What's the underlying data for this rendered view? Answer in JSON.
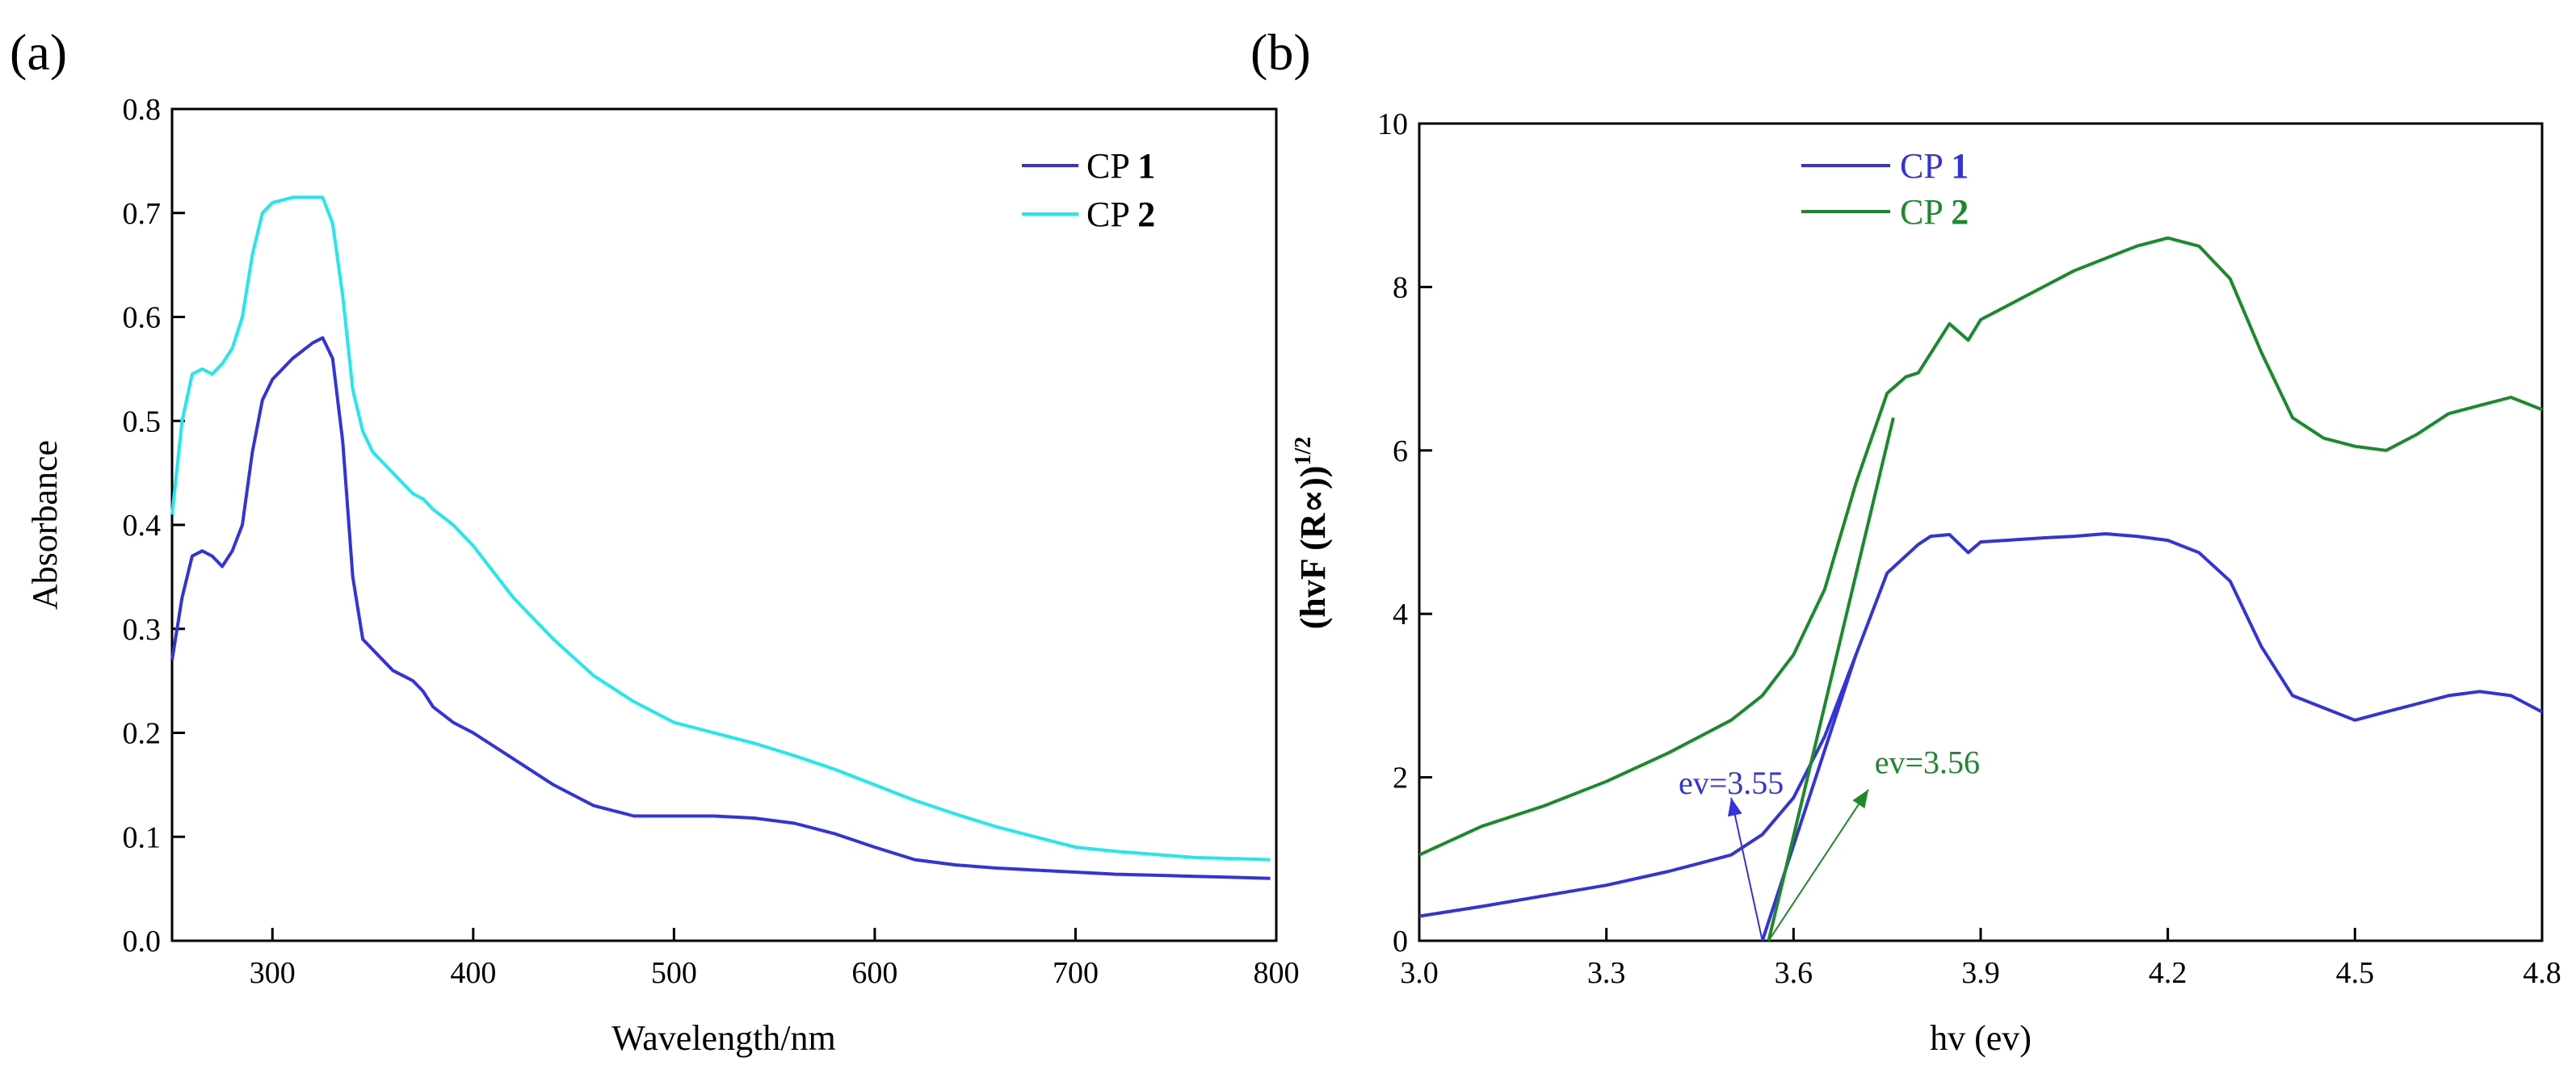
{
  "chart_data": [
    {
      "type": "line",
      "panel_label": "(a)",
      "xlabel": "Wavelength/nm",
      "ylabel": "Absorbance",
      "xlim": [
        250,
        800
      ],
      "ylim": [
        0.0,
        0.8
      ],
      "x_ticks": [
        300,
        400,
        500,
        600,
        700,
        800
      ],
      "x_tick_labels": [
        "300",
        "400",
        "500",
        "600",
        "700",
        "800"
      ],
      "y_ticks": [
        0.0,
        0.1,
        0.2,
        0.3,
        0.4,
        0.5,
        0.6,
        0.7,
        0.8
      ],
      "y_tick_labels": [
        "0.0",
        "0.1",
        "0.2",
        "0.3",
        "0.4",
        "0.5",
        "0.6",
        "0.7",
        "0.8"
      ],
      "grid": false,
      "legend_position": "top-right",
      "series": [
        {
          "name": "CP 1",
          "name_prefix": "CP ",
          "name_bold": "1",
          "color": "#3333dd",
          "x": [
            250,
            255,
            260,
            265,
            270,
            275,
            280,
            285,
            290,
            295,
            300,
            310,
            320,
            325,
            330,
            335,
            340,
            345,
            350,
            360,
            370,
            375,
            380,
            390,
            400,
            420,
            440,
            460,
            480,
            500,
            520,
            540,
            560,
            580,
            600,
            620,
            640,
            660,
            680,
            700,
            720,
            740,
            760,
            780,
            797
          ],
          "y": [
            0.27,
            0.33,
            0.37,
            0.375,
            0.37,
            0.36,
            0.375,
            0.4,
            0.47,
            0.52,
            0.54,
            0.56,
            0.575,
            0.58,
            0.56,
            0.48,
            0.35,
            0.29,
            0.28,
            0.26,
            0.25,
            0.24,
            0.225,
            0.21,
            0.2,
            0.175,
            0.15,
            0.13,
            0.12,
            0.12,
            0.12,
            0.118,
            0.113,
            0.103,
            0.09,
            0.078,
            0.073,
            0.07,
            0.068,
            0.066,
            0.064,
            0.063,
            0.062,
            0.061,
            0.06
          ]
        },
        {
          "name": "CP 2",
          "name_prefix": "CP ",
          "name_bold": "2",
          "color": "#22e8ee",
          "x": [
            250,
            255,
            260,
            265,
            270,
            275,
            280,
            285,
            290,
            295,
            300,
            310,
            320,
            325,
            330,
            335,
            340,
            345,
            350,
            360,
            370,
            375,
            380,
            390,
            400,
            420,
            440,
            460,
            480,
            500,
            520,
            540,
            560,
            580,
            600,
            620,
            640,
            660,
            680,
            700,
            720,
            740,
            760,
            780,
            797
          ],
          "y": [
            0.41,
            0.5,
            0.545,
            0.55,
            0.545,
            0.555,
            0.57,
            0.6,
            0.66,
            0.7,
            0.71,
            0.715,
            0.715,
            0.715,
            0.69,
            0.62,
            0.53,
            0.49,
            0.47,
            0.45,
            0.43,
            0.425,
            0.415,
            0.4,
            0.38,
            0.33,
            0.29,
            0.255,
            0.23,
            0.21,
            0.2,
            0.19,
            0.178,
            0.165,
            0.15,
            0.135,
            0.122,
            0.11,
            0.1,
            0.09,
            0.086,
            0.083,
            0.08,
            0.079,
            0.078
          ]
        }
      ]
    },
    {
      "type": "line",
      "panel_label": "(b)",
      "xlabel": "hv (ev)",
      "ylabel_main": "(hvF (R∝))",
      "ylabel_sup": "1/2",
      "xlim": [
        3.0,
        4.8
      ],
      "ylim": [
        0,
        10
      ],
      "x_ticks": [
        3.0,
        3.3,
        3.6,
        3.9,
        4.2,
        4.5,
        4.8
      ],
      "x_tick_labels": [
        "3.0",
        "3.3",
        "3.6",
        "3.9",
        "4.2",
        "4.5",
        "4.8"
      ],
      "y_ticks": [
        0,
        2,
        4,
        6,
        8,
        10
      ],
      "y_tick_labels": [
        "0",
        "2",
        "4",
        "6",
        "8",
        "10"
      ],
      "grid": false,
      "legend_position": "top-left",
      "series": [
        {
          "name": "CP 1",
          "name_prefix": "CP ",
          "name_bold": "1",
          "color": "#3333dd",
          "x": [
            3.0,
            3.1,
            3.2,
            3.3,
            3.4,
            3.45,
            3.5,
            3.55,
            3.6,
            3.65,
            3.7,
            3.75,
            3.8,
            3.82,
            3.85,
            3.88,
            3.9,
            4.0,
            4.05,
            4.1,
            4.15,
            4.2,
            4.25,
            4.3,
            4.35,
            4.4,
            4.45,
            4.5,
            4.55,
            4.6,
            4.65,
            4.7,
            4.75,
            4.8
          ],
          "y": [
            0.3,
            0.42,
            0.55,
            0.68,
            0.85,
            0.95,
            1.05,
            1.3,
            1.75,
            2.5,
            3.5,
            4.5,
            4.85,
            4.95,
            4.97,
            4.75,
            4.88,
            4.93,
            4.95,
            4.98,
            4.95,
            4.9,
            4.75,
            4.4,
            3.6,
            3.0,
            2.85,
            2.7,
            2.8,
            2.9,
            3.0,
            3.05,
            3.0,
            2.8
          ]
        },
        {
          "name": "CP 2",
          "name_prefix": "CP ",
          "name_bold": "2",
          "color": "#1a8a2a",
          "x": [
            3.0,
            3.1,
            3.2,
            3.3,
            3.4,
            3.45,
            3.5,
            3.55,
            3.6,
            3.65,
            3.7,
            3.75,
            3.78,
            3.8,
            3.85,
            3.88,
            3.9,
            4.0,
            4.05,
            4.1,
            4.15,
            4.2,
            4.25,
            4.3,
            4.35,
            4.4,
            4.45,
            4.5,
            4.55,
            4.6,
            4.65,
            4.7,
            4.75,
            4.8
          ],
          "y": [
            1.05,
            1.4,
            1.65,
            1.95,
            2.3,
            2.5,
            2.7,
            3.0,
            3.5,
            4.3,
            5.6,
            6.7,
            6.9,
            6.95,
            7.55,
            7.35,
            7.6,
            8.0,
            8.2,
            8.35,
            8.5,
            8.6,
            8.5,
            8.1,
            7.2,
            6.4,
            6.15,
            6.05,
            6.0,
            6.2,
            6.45,
            6.55,
            6.65,
            6.5
          ]
        }
      ],
      "tangents": [
        {
          "color": "#3333dd",
          "x": [
            3.55,
            3.7
          ],
          "y": [
            0,
            3.5
          ]
        },
        {
          "color": "#1a8a2a",
          "x": [
            3.56,
            3.76
          ],
          "y": [
            0,
            6.4
          ]
        }
      ],
      "annotations": [
        {
          "text": "ev=3.55",
          "color": "#3333dd",
          "x": 3.5,
          "y": 1.8,
          "arrow_from": [
            3.55,
            0
          ],
          "arrow_to": [
            3.5,
            1.75
          ]
        },
        {
          "text": "ev=3.56",
          "color": "#1a8a2a",
          "x": 3.73,
          "y": 2.05,
          "arrow_from": [
            3.56,
            0
          ],
          "arrow_to": [
            3.72,
            1.85
          ]
        }
      ]
    }
  ]
}
